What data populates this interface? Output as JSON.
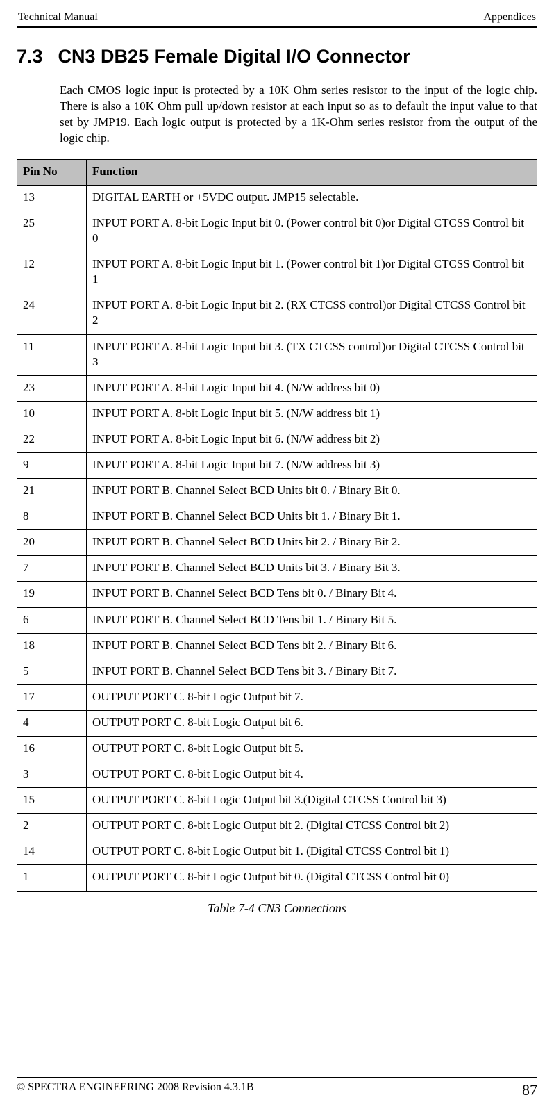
{
  "header": {
    "left": "Technical Manual",
    "right": "Appendices"
  },
  "section": {
    "number": "7.3",
    "title": "CN3 DB25 Female Digital I/O Connector"
  },
  "intro": "Each CMOS logic input is protected by a 10K Ohm series resistor to the input of the logic chip. There is also a 10K Ohm pull up/down resistor at each input so as to default the input value to that set by JMP19. Each logic output is protected by a 1K-Ohm series resistor from the output of the logic chip.",
  "table": {
    "header_bg": "#c0c0c0",
    "columns": [
      "Pin No",
      "Function"
    ],
    "rows": [
      [
        "13",
        "DIGITAL EARTH or +5VDC output. JMP15 selectable."
      ],
      [
        "25",
        "INPUT PORT A.  8-bit Logic Input bit 0. (Power control bit 0)or Digital CTCSS Control bit 0"
      ],
      [
        "12",
        "INPUT PORT A.  8-bit Logic Input bit 1. (Power control bit 1)or Digital CTCSS Control bit 1"
      ],
      [
        "24",
        "INPUT PORT A.  8-bit Logic Input bit 2. (RX CTCSS control)or Digital CTCSS Control bit 2"
      ],
      [
        "11",
        "INPUT PORT A.  8-bit Logic Input bit 3. (TX CTCSS control)or Digital CTCSS Control bit 3"
      ],
      [
        "23",
        "INPUT PORT A.  8-bit Logic Input bit 4. (N/W address bit 0)"
      ],
      [
        "10",
        "INPUT PORT A.  8-bit Logic Input bit 5. (N/W address bit 1)"
      ],
      [
        "22",
        "INPUT PORT A.  8-bit Logic Input bit 6. (N/W address bit 2)"
      ],
      [
        "9",
        "INPUT PORT A.  8-bit Logic Input bit 7. (N/W address bit 3)"
      ],
      [
        "21",
        "INPUT PORT B. Channel Select BCD Units bit 0. / Binary Bit 0."
      ],
      [
        "8",
        "INPUT PORT B. Channel Select BCD Units bit 1. / Binary Bit 1."
      ],
      [
        "20",
        "INPUT PORT B. Channel Select BCD Units bit 2. / Binary Bit 2."
      ],
      [
        "7",
        "INPUT PORT B. Channel Select BCD Units bit 3. / Binary Bit 3."
      ],
      [
        "19",
        "INPUT PORT B. Channel Select BCD Tens bit 0. / Binary Bit 4."
      ],
      [
        "6",
        "INPUT PORT B. Channel Select BCD Tens bit 1. / Binary Bit 5."
      ],
      [
        "18",
        "INPUT PORT B. Channel Select BCD Tens bit 2. / Binary Bit 6."
      ],
      [
        "5",
        "INPUT PORT B. Channel Select BCD Tens bit 3. / Binary Bit 7."
      ],
      [
        "17",
        "OUTPUT PORT C.  8-bit Logic Output bit 7."
      ],
      [
        "4",
        "OUTPUT PORT C.  8-bit Logic Output bit 6."
      ],
      [
        "16",
        "OUTPUT PORT C.  8-bit Logic Output bit 5."
      ],
      [
        "3",
        "OUTPUT PORT C.  8-bit Logic Output bit 4."
      ],
      [
        "15",
        "OUTPUT PORT C.  8-bit Logic Output bit 3.(Digital CTCSS Control bit 3)"
      ],
      [
        "2",
        "OUTPUT PORT C.  8-bit Logic Output bit 2. (Digital CTCSS Control bit 2)"
      ],
      [
        "14",
        "OUTPUT PORT C.  8-bit Logic Output bit 1. (Digital CTCSS Control bit 1)"
      ],
      [
        "1",
        "OUTPUT PORT C.  8-bit Logic Output bit 0. (Digital CTCSS Control bit 0)"
      ]
    ]
  },
  "caption": "Table 7-4  CN3 Connections",
  "footer": {
    "left": "© SPECTRA ENGINEERING 2008 Revision 4.3.1B",
    "page": "87"
  }
}
